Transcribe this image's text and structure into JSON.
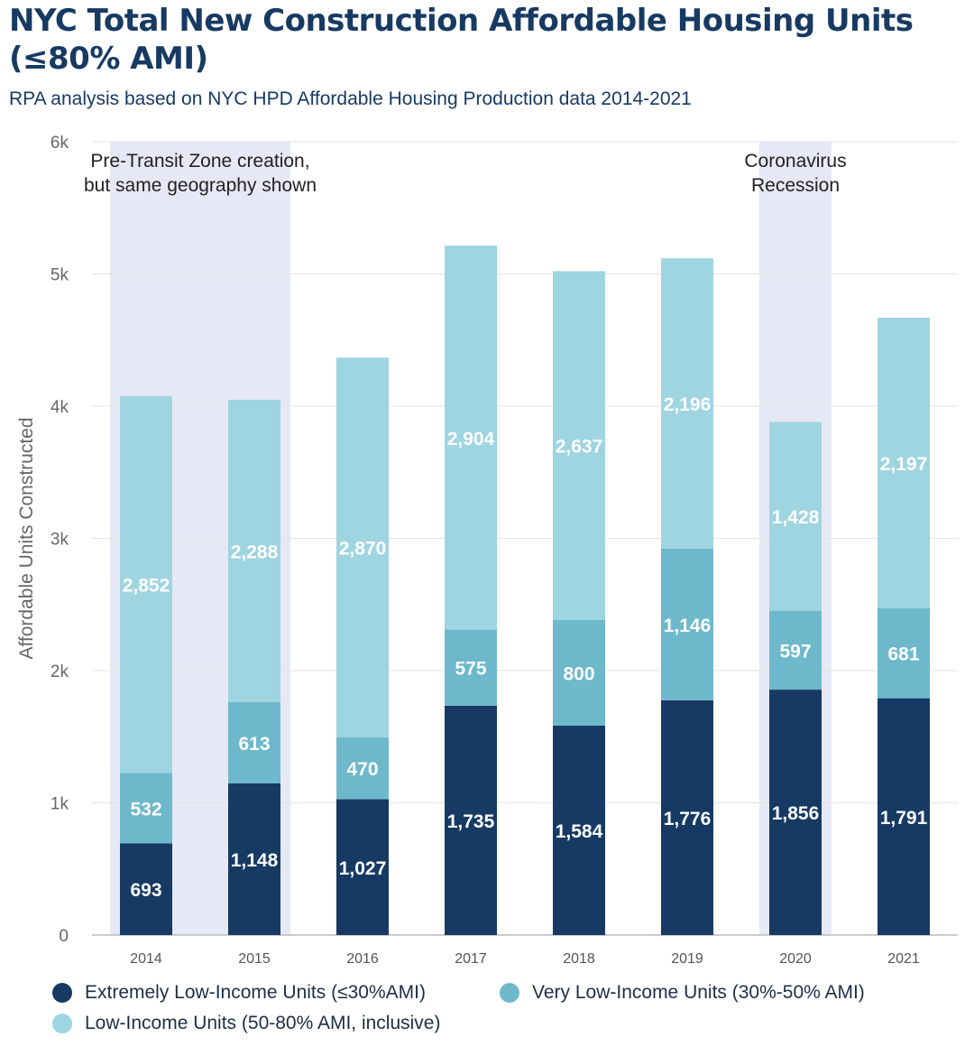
{
  "chart_data": {
    "type": "bar",
    "stacked": true,
    "title": "NYC Total New Construction Affordable Housing Units (≤80% AMI)",
    "subtitle": "RPA analysis based on NYC HPD Affordable Housing Production data 2014-2021",
    "xlabel": "",
    "ylabel": "Affordable Units Constructed",
    "ylim": [
      0,
      6000
    ],
    "yticks": [
      0,
      1000,
      2000,
      3000,
      4000,
      5000,
      6000
    ],
    "ytick_labels": [
      "0",
      "1k",
      "2k",
      "3k",
      "4k",
      "5k",
      "6k"
    ],
    "grid": true,
    "categories": [
      "2014",
      "2015",
      "2016",
      "2017",
      "2018",
      "2019",
      "2020",
      "2021"
    ],
    "series": [
      {
        "name": "Extremely Low-Income Units (≤30%AMI)",
        "color": "#163a63",
        "values": [
          693,
          1148,
          1027,
          1735,
          1584,
          1776,
          1856,
          1791
        ],
        "labels": [
          "693",
          "1,148",
          "1,027",
          "1,735",
          "1,584",
          "1,776",
          "1,856",
          "1,791"
        ]
      },
      {
        "name": "Very Low-Income Units (30%-50% AMI)",
        "color": "#6eb8cc",
        "values": [
          532,
          613,
          470,
          575,
          800,
          1146,
          597,
          681
        ],
        "labels": [
          "532",
          "613",
          "470",
          "575",
          "800",
          "1,146",
          "597",
          "681"
        ]
      },
      {
        "name": "Low-Income Units (50-80% AMI, inclusive)",
        "color": "#9fd4e1",
        "values": [
          2852,
          2288,
          2870,
          2904,
          2637,
          2196,
          1428,
          2197
        ],
        "labels": [
          "2,852",
          "2,288",
          "2,870",
          "2,904",
          "2,637",
          "2,196",
          "1,428",
          "2,197"
        ]
      }
    ],
    "highlight_bands": [
      {
        "from_category": "2014",
        "to_category": "2015",
        "color": "#e6e9f5",
        "label_lines": [
          "Pre-Transit Zone creation,",
          "but same geography shown"
        ]
      },
      {
        "from_category": "2020",
        "to_category": "2020",
        "color": "#e6e9f5",
        "label_lines": [
          "Coronavirus",
          "Recession"
        ]
      }
    ],
    "legend_placement": "bottom"
  }
}
